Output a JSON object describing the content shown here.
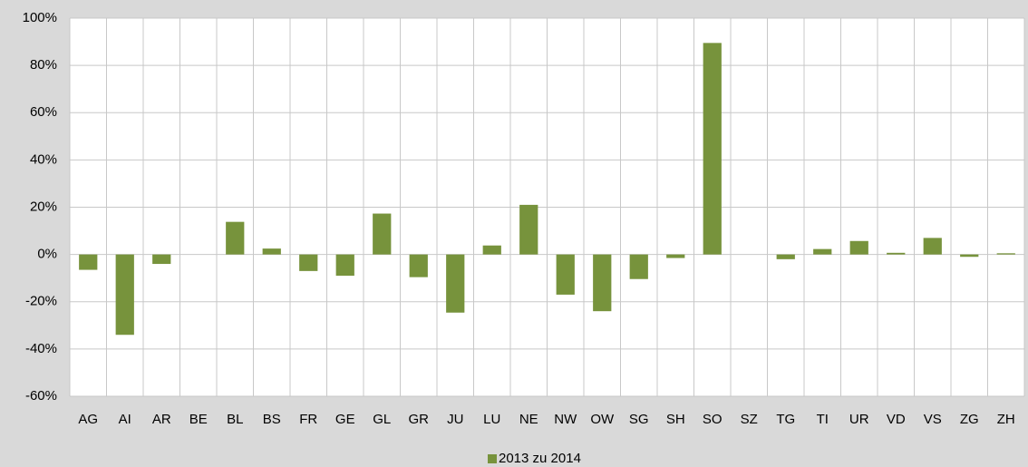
{
  "chart_data": {
    "type": "bar",
    "categories": [
      "AG",
      "AI",
      "AR",
      "BE",
      "BL",
      "BS",
      "FR",
      "GE",
      "GL",
      "GR",
      "JU",
      "LU",
      "NE",
      "NW",
      "OW",
      "SG",
      "SH",
      "SO",
      "SZ",
      "TG",
      "TI",
      "UR",
      "VD",
      "VS",
      "ZG",
      "ZH"
    ],
    "series": [
      {
        "name": "2013 zu 2014",
        "color": "#77933c",
        "values": [
          -6.5,
          -34,
          -4,
          0,
          13.8,
          2.5,
          -7,
          -9,
          17.3,
          -9.6,
          -24.6,
          3.8,
          21,
          -17,
          -24,
          -10.4,
          -1.5,
          89.5,
          0,
          -2,
          2.3,
          5.7,
          0.7,
          7,
          -1,
          0.5
        ]
      }
    ],
    "ylim": [
      -60,
      100
    ],
    "yticks": [
      {
        "value": -60,
        "label": "-60%"
      },
      {
        "value": -40,
        "label": "-40%"
      },
      {
        "value": -20,
        "label": "-20%"
      },
      {
        "value": 0,
        "label": "0%"
      },
      {
        "value": 20,
        "label": "20%"
      },
      {
        "value": 40,
        "label": "40%"
      },
      {
        "value": 60,
        "label": "60%"
      },
      {
        "value": 80,
        "label": "80%"
      },
      {
        "value": 100,
        "label": "100%"
      }
    ],
    "grid": true,
    "legend": "bottom"
  }
}
